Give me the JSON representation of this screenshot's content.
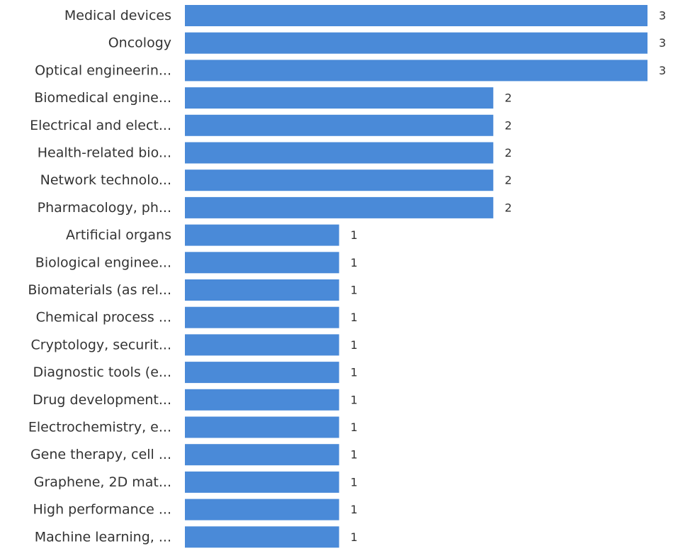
{
  "chart_data": {
    "type": "bar",
    "orientation": "horizontal",
    "categories": [
      "Medical devices",
      "Oncology",
      "Optical engineerin...",
      "Biomedical engine...",
      "Electrical and elect...",
      "Health-related bio...",
      "Network technolo...",
      "Pharmacology, ph...",
      "Artificial organs",
      "Biological enginee...",
      "Biomaterials (as rel...",
      "Chemical process ...",
      "Cryptology, securit...",
      "Diagnostic tools (e...",
      "Drug development...",
      "Electrochemistry, e...",
      "Gene therapy, cell ...",
      "Graphene, 2D mat...",
      "High performance ...",
      "Machine learning, ..."
    ],
    "values": [
      3,
      3,
      3,
      2,
      2,
      2,
      2,
      2,
      1,
      1,
      1,
      1,
      1,
      1,
      1,
      1,
      1,
      1,
      1,
      1
    ],
    "xlim": [
      0,
      3
    ],
    "grid": false,
    "legend": false,
    "bar_color": "#4a8ad8",
    "label_color": "#333333"
  }
}
